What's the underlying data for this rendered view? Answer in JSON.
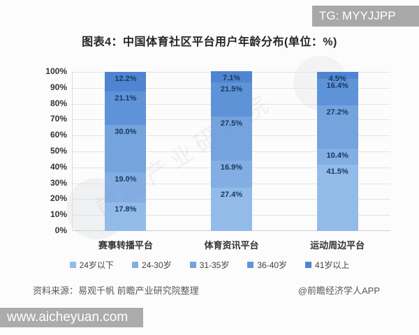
{
  "badge": "TG: MYYJJPP",
  "title": "图表4：中国体育社区平台用户年龄分布(单位：%)",
  "chart_data": {
    "type": "bar",
    "stacked": true,
    "percent_stacked": true,
    "categories": [
      "赛事转播平台",
      "体育资讯平台",
      "运动周边平台"
    ],
    "series": [
      {
        "name": "24岁以下",
        "color": "#93bbea",
        "values": [
          17.8,
          27.4,
          41.5
        ]
      },
      {
        "name": "24-30岁",
        "color": "#83aee4",
        "values": [
          19.0,
          16.9,
          10.4
        ]
      },
      {
        "name": "31-35岁",
        "color": "#74a3de",
        "values": [
          30.0,
          27.5,
          27.2
        ]
      },
      {
        "name": "36-40岁",
        "color": "#5f93d8",
        "values": [
          21.1,
          21.5,
          16.4
        ]
      },
      {
        "name": "41岁以上",
        "color": "#4f85d0",
        "values": [
          12.2,
          7.1,
          4.5
        ]
      }
    ],
    "title": "图表4：中国体育社区平台用户年龄分布(单位：%)",
    "xlabel": "",
    "ylabel": "",
    "ylim": [
      0,
      100
    ],
    "ytick_step": 10,
    "ytick_suffix": "%",
    "value_suffix": "%",
    "grid": true,
    "legend_position": "bottom",
    "value_label_color": "#17375e"
  },
  "source": {
    "left": "资料来源：易观千帆 前瞻产业研究院整理",
    "right": "@前瞻经济学人APP"
  },
  "watermarks": {
    "diagonal": "前瞻产业研究院",
    "site_bar": "www.aicheyuan.com"
  }
}
